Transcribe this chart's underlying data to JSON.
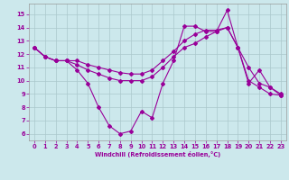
{
  "background_color": "#cce8ec",
  "grid_color": "#aac8cc",
  "line_color": "#990099",
  "xlim": [
    -0.5,
    23.5
  ],
  "ylim": [
    5.5,
    15.8
  ],
  "x_ticks": [
    0,
    1,
    2,
    3,
    4,
    5,
    6,
    7,
    8,
    9,
    10,
    11,
    12,
    13,
    14,
    15,
    16,
    17,
    18,
    19,
    20,
    21,
    22,
    23
  ],
  "y_ticks": [
    6,
    7,
    8,
    9,
    10,
    11,
    12,
    13,
    14,
    15
  ],
  "xlabel": "Windchill (Refroidissement éolien,°C)",
  "line1_x": [
    0,
    1,
    2,
    3,
    4,
    5,
    6,
    7,
    8,
    9,
    10,
    11,
    12,
    13,
    14,
    15,
    16,
    17,
    18,
    19,
    20,
    21,
    22,
    23
  ],
  "line1_y": [
    12.5,
    11.8,
    11.5,
    11.5,
    10.8,
    9.8,
    8.0,
    6.6,
    6.0,
    6.2,
    7.7,
    7.2,
    9.8,
    11.5,
    14.1,
    14.1,
    13.7,
    13.7,
    15.3,
    12.5,
    11.0,
    9.8,
    9.5,
    8.9
  ],
  "line2_x": [
    0,
    1,
    2,
    3,
    4,
    5,
    6,
    7,
    8,
    9,
    10,
    11,
    12,
    13,
    14,
    15,
    16,
    17,
    18,
    19,
    20,
    21,
    22,
    23
  ],
  "line2_y": [
    12.5,
    11.8,
    11.5,
    11.5,
    11.2,
    10.8,
    10.5,
    10.2,
    10.0,
    10.0,
    10.0,
    10.3,
    11.0,
    11.8,
    12.5,
    12.8,
    13.3,
    13.7,
    14.0,
    12.5,
    10.0,
    9.5,
    9.0,
    8.9
  ],
  "line3_x": [
    0,
    1,
    2,
    3,
    4,
    5,
    6,
    7,
    8,
    9,
    10,
    11,
    12,
    13,
    14,
    15,
    16,
    17,
    18,
    19,
    20,
    21,
    22,
    23
  ],
  "line3_y": [
    12.5,
    11.8,
    11.5,
    11.5,
    11.5,
    11.2,
    11.0,
    10.8,
    10.6,
    10.5,
    10.5,
    10.8,
    11.5,
    12.2,
    13.0,
    13.5,
    13.8,
    13.8,
    14.0,
    12.5,
    9.8,
    10.8,
    9.5,
    9.0
  ]
}
